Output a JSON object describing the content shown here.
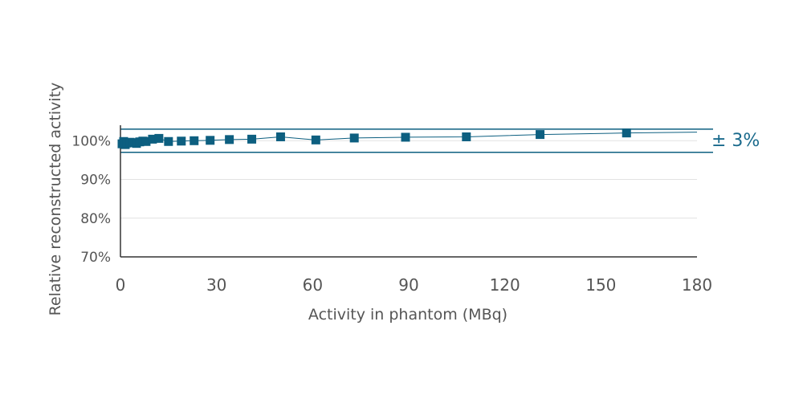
{
  "chart_data": {
    "type": "scatter",
    "xlabel": "Activity in phantom (MBq)",
    "ylabel": "Relative reconstructed activity",
    "xlim": [
      0,
      180
    ],
    "ylim": [
      70,
      104
    ],
    "x_ticks": [
      "0",
      "30",
      "60",
      "90",
      "120",
      "150",
      "180"
    ],
    "y_ticks": [
      "70%",
      "80%",
      "90%",
      "100%"
    ],
    "band": {
      "label": "± 3%",
      "lower": 97,
      "upper": 103
    },
    "grid": "horizontal",
    "legend": "none",
    "series": [
      {
        "x": [
          0.5,
          1,
          1.5,
          2,
          3,
          4,
          5,
          6,
          7,
          8,
          10,
          12,
          15,
          19,
          23,
          28,
          34,
          41,
          50,
          61,
          73,
          89,
          108,
          131,
          158
        ],
        "y": [
          99.2,
          99.8,
          99.0,
          99.4,
          99.6,
          99.5,
          99.3,
          99.7,
          99.9,
          99.8,
          100.4,
          100.6,
          99.8,
          99.9,
          100.0,
          100.1,
          100.3,
          100.4,
          101.0,
          100.2,
          100.7,
          100.9,
          101.0,
          101.6,
          102.0
        ]
      }
    ],
    "colors": {
      "accent": "#0d5f80",
      "axis": "#333333",
      "grid": "#e2e2e2"
    }
  }
}
